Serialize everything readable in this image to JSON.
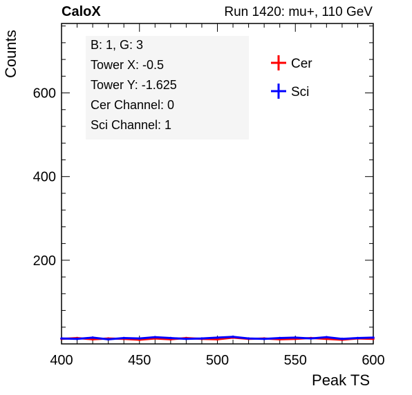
{
  "header": {
    "left_title": "CaloX",
    "right_title": "Run 1420: mu+, 110 GeV"
  },
  "info_box": {
    "lines": [
      "B: 1, G: 3",
      "Tower X: -0.5",
      "Tower Y: -1.625",
      "Cer Channel: 0",
      "Sci Channel: 1"
    ]
  },
  "colors": {
    "cer": "#ff0000",
    "sci": "#0000ff",
    "axis": "#000000",
    "info_bg": "#f5f5f5"
  },
  "chart_data": {
    "type": "line",
    "title": "",
    "xlabel": "Peak TS",
    "ylabel": "Counts",
    "xlim": [
      400,
      600
    ],
    "ylim": [
      0,
      766
    ],
    "x_ticks": [
      400,
      450,
      500,
      550,
      600
    ],
    "y_ticks": [
      200,
      400,
      600
    ],
    "legend": {
      "placement": "top-right",
      "entries": [
        "Cer",
        "Sci"
      ]
    },
    "grid": false,
    "x": [
      400,
      410,
      420,
      430,
      440,
      450,
      460,
      470,
      480,
      490,
      500,
      510,
      520,
      530,
      540,
      550,
      560,
      570,
      580,
      590,
      600
    ],
    "series": [
      {
        "name": "Cer",
        "values": [
          12,
          14,
          11,
          13,
          12,
          10,
          13,
          11,
          14,
          12,
          11,
          15,
          12,
          13,
          11,
          12,
          14,
          12,
          10,
          13,
          12
        ]
      },
      {
        "name": "Sci",
        "values": [
          13,
          12,
          15,
          11,
          14,
          13,
          16,
          14,
          12,
          13,
          15,
          17,
          13,
          12,
          14,
          15,
          13,
          16,
          12,
          14,
          15
        ]
      }
    ]
  }
}
